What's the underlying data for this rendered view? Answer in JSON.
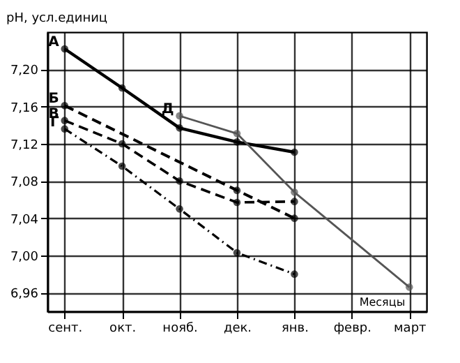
{
  "chart_data": {
    "type": "line",
    "ylabel": "pH, усл.единиц",
    "xlabel": "Месяцы",
    "categories": [
      "сент.",
      "окт.",
      "нояб.",
      "дек.",
      "янв.",
      "февр.",
      "март"
    ],
    "series": [
      {
        "name": "А",
        "color": "#000000",
        "line_style": "solid",
        "values": [
          7.222,
          7.18,
          7.137,
          7.122,
          7.111,
          null,
          null
        ]
      },
      {
        "name": "Б",
        "color": "#000000",
        "line_style": "dashed",
        "values": [
          7.161,
          null,
          null,
          7.07,
          7.04,
          null,
          null
        ]
      },
      {
        "name": "В",
        "color": "#000000",
        "line_style": "dashed",
        "values": [
          7.145,
          7.12,
          7.08,
          7.057,
          7.058,
          null,
          null
        ]
      },
      {
        "name": "Г",
        "color": "#000000",
        "line_style": "dotted",
        "values": [
          7.136,
          7.096,
          7.05,
          7.003,
          6.98,
          null,
          null
        ]
      },
      {
        "name": "Д",
        "color": "#555555",
        "line_style": "solid",
        "values": [
          null,
          null,
          7.15,
          7.131,
          7.068,
          null,
          6.966
        ]
      }
    ],
    "ylim": [
      6.94,
      7.24
    ],
    "yticks": [
      {
        "value": 6.96,
        "label": "6,96"
      },
      {
        "value": 7.0,
        "label": "7,00"
      },
      {
        "value": 7.04,
        "label": "7,04"
      },
      {
        "value": 7.08,
        "label": "7,08"
      },
      {
        "value": 7.12,
        "label": "7,12"
      },
      {
        "value": 7.16,
        "label": "7,16"
      },
      {
        "value": 7.2,
        "label": "7,20"
      }
    ],
    "grid": true,
    "marker": "circle",
    "legend": false
  }
}
